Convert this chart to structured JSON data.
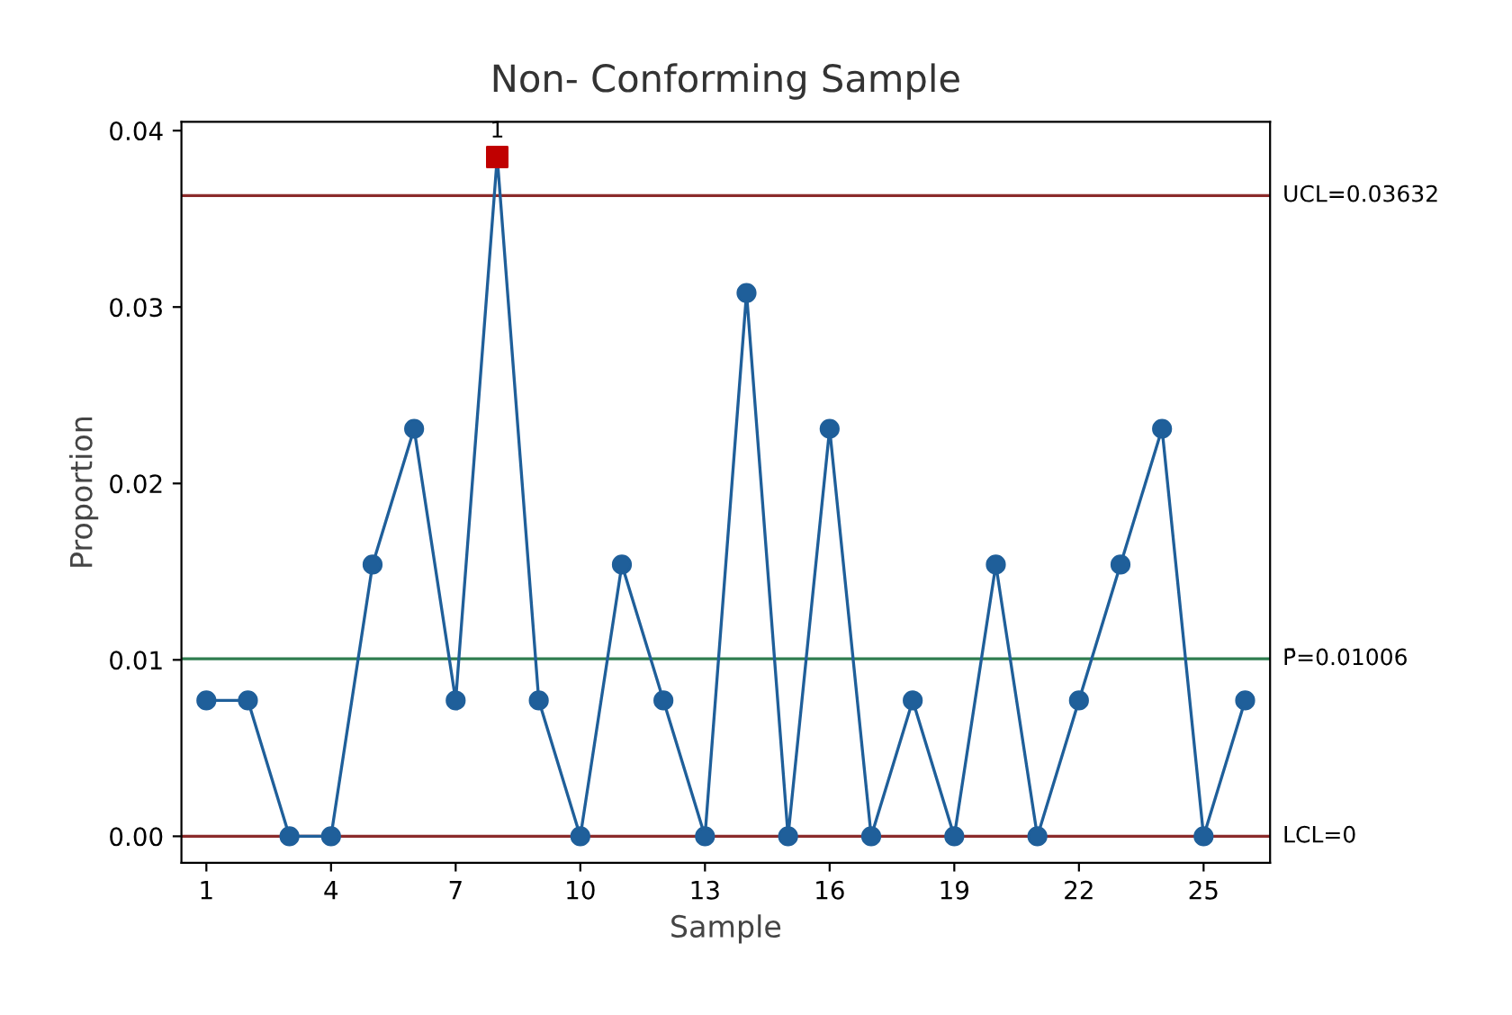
{
  "chart_data": {
    "type": "line",
    "title": "Non- Conforming Sample",
    "xlabel": "Sample",
    "ylabel": "Proportion",
    "x": [
      1,
      2,
      3,
      4,
      5,
      6,
      7,
      8,
      9,
      10,
      11,
      12,
      13,
      14,
      15,
      16,
      17,
      18,
      19,
      20,
      21,
      22,
      23,
      24,
      25,
      26
    ],
    "series": [
      {
        "color": "#1f5f9a",
        "marker": "circle",
        "values": [
          0.0077,
          0.0077,
          0,
          0,
          0.0154,
          0.0231,
          0.0077,
          0.0385,
          0.0077,
          0,
          0.0154,
          0.0077,
          0,
          0.0308,
          0,
          0.0231,
          0,
          0.0077,
          0,
          0.0154,
          0,
          0.0077,
          0.0154,
          0.0231,
          0,
          0.0077
        ]
      },
      {
        "type": "scatter",
        "color": "#c00000",
        "marker": "square",
        "x": [
          8
        ],
        "values": [
          0.0385
        ]
      }
    ],
    "annotations": [
      {
        "text": "1",
        "x": 8,
        "y": 0.0385
      }
    ],
    "ref_lines": [
      {
        "axis": "y",
        "value": 0.03632,
        "label": "UCL=0.03632",
        "color": "#8b2b2b"
      },
      {
        "axis": "y",
        "value": 0.01006,
        "label": "P̄=0.01006",
        "color": "#2e7d4f"
      },
      {
        "axis": "y",
        "value": 0,
        "label": "LCL=0",
        "color": "#8b2b2b"
      }
    ],
    "xlim": [
      0.4,
      26.6
    ],
    "xticks": [
      1,
      4,
      7,
      10,
      13,
      16,
      19,
      22,
      25
    ],
    "ylim": [
      -0.0015,
      0.0405
    ],
    "yticks": [
      {
        "value": 0,
        "label": "0.00"
      },
      {
        "value": 0.01,
        "label": "0.01"
      },
      {
        "value": 0.02,
        "label": "0.02"
      },
      {
        "value": 0.03,
        "label": "0.03"
      },
      {
        "value": 0.04,
        "label": "0.04"
      }
    ],
    "grid": false,
    "legend": false
  }
}
